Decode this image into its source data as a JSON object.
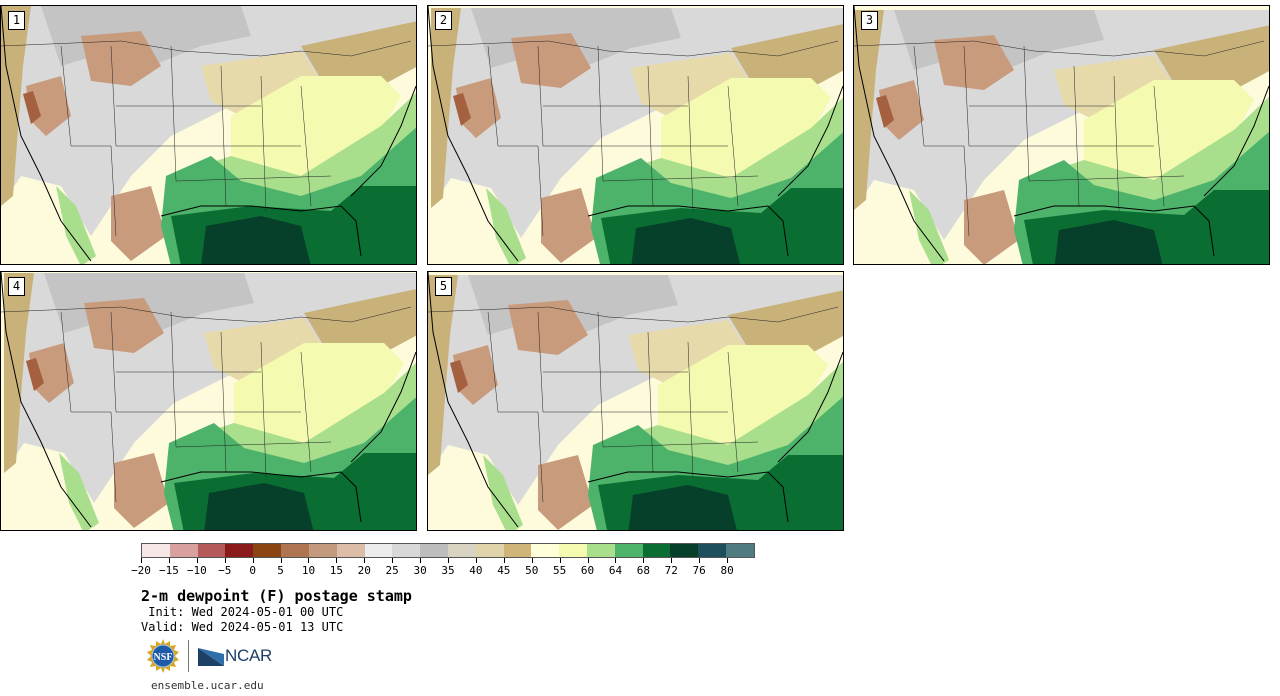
{
  "title": "2-m dewpoint (F) postage stamp",
  "init": " Init: Wed 2024-05-01 00 UTC",
  "valid": "Valid: Wed 2024-05-01 13 UTC",
  "website": "ensemble.ucar.edu",
  "logos": {
    "nsf": "NSF",
    "ncar": "NCAR"
  },
  "panels": [
    {
      "member": "1"
    },
    {
      "member": "2"
    },
    {
      "member": "3"
    },
    {
      "member": "4"
    },
    {
      "member": "5"
    }
  ],
  "colorbar": {
    "tick_labels": [
      "−20",
      "−15",
      "−10",
      "−5",
      "0",
      "5",
      "10",
      "15",
      "20",
      "25",
      "30",
      "35",
      "40",
      "45",
      "50",
      "55",
      "60",
      "64",
      "68",
      "72",
      "76",
      "80"
    ],
    "colors": [
      "#f6e6e6",
      "#d9a0a0",
      "#b55a5a",
      "#8b1a1a",
      "#8b4513",
      "#ad7650",
      "#c49a7e",
      "#dcbea8",
      "#ececec",
      "#d8d8d8",
      "#bdbdbd",
      "#d7d2c2",
      "#dfd4a9",
      "#cfb578",
      "#ffffd9",
      "#f4fab0",
      "#a8de8c",
      "#4db36a",
      "#0a6e32",
      "#06402a",
      "#1d4f5c",
      "#507b80"
    ]
  }
}
